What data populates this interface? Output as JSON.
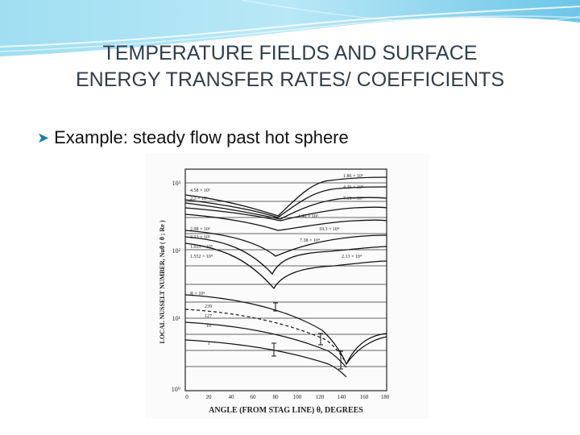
{
  "slide": {
    "title_line1": "TEMPERATURE FIELDS AND  SURFACE",
    "title_line2": "ENERGY TRANSFER RATES/ COEFFICIENTS",
    "bullet_text": "Example: steady flow past hot sphere"
  },
  "colors": {
    "title": "#2e3f4d",
    "bullet_arrow": "#1a7fa8",
    "banner": "#7fd0ec"
  },
  "icons": {
    "bullet": "arrow-bullet-icon"
  },
  "figure": {
    "y_axis_label": "LOCAL NUSSELT NUMBER, Nuθ  ( θ ; Re )",
    "x_axis_label": "ANGLE (FROM STAG LINE)  θ, DEGREES",
    "y_ticks": [
      "10³",
      "10²",
      "10¹",
      "10⁰"
    ],
    "x_ticks": [
      "0",
      "20",
      "40",
      "60",
      "80",
      "100",
      "120",
      "140",
      "160",
      "180"
    ],
    "curve_labels_left": [
      "4.58 × 10⁶",
      "2.2 × 10⁶",
      "2.98 × 10⁶",
      "3.13 × 10⁵",
      "1.055 × 10⁵",
      "1.552 × 10⁴",
      "R = 10³",
      "239",
      "127",
      "10",
      "1"
    ],
    "curve_labels_right": [
      "1.86 × 10⁶",
      "4.26 × 10⁵",
      "7.19 × 10⁴",
      "1.40 × 10⁵",
      "10.3 × 10⁴",
      "7.38 × 10⁴",
      "2.13 × 10⁴"
    ]
  }
}
